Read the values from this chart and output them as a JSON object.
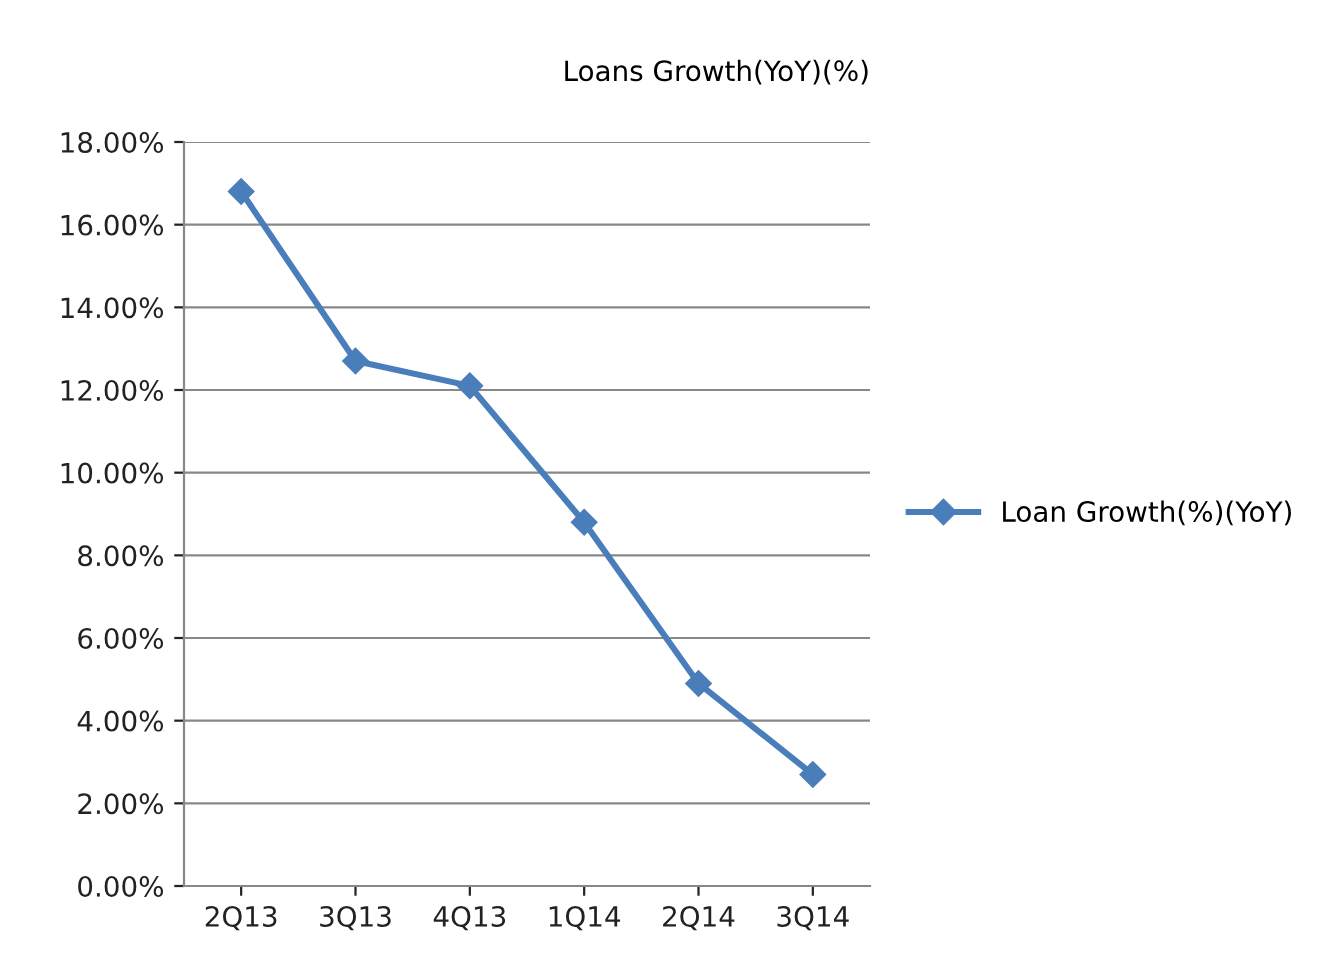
{
  "chart_data": {
    "type": "line",
    "title": "Loans Growth(YoY)(%)",
    "categories": [
      "2Q13",
      "3Q13",
      "4Q13",
      "1Q14",
      "2Q14",
      "3Q14"
    ],
    "series": [
      {
        "name": "Loan Growth(%)(YoY)",
        "color": "#4a7ebb",
        "values": [
          16.8,
          12.7,
          12.1,
          8.8,
          4.9,
          2.7
        ]
      }
    ],
    "ylim": [
      0,
      18
    ],
    "yticks": [
      {
        "value": 0,
        "label": "0.00%"
      },
      {
        "value": 2,
        "label": "2.00%"
      },
      {
        "value": 4,
        "label": "4.00%"
      },
      {
        "value": 6,
        "label": "6.00%"
      },
      {
        "value": 8,
        "label": "8.00%"
      },
      {
        "value": 10,
        "label": "10.00%"
      },
      {
        "value": 12,
        "label": "12.00%"
      },
      {
        "value": 14,
        "label": "14.00%"
      },
      {
        "value": 16,
        "label": "16.00%"
      },
      {
        "value": 18,
        "label": "18.00%"
      }
    ],
    "grid": "y",
    "legend": "right",
    "marker": "diamond",
    "line_style": "solid"
  }
}
